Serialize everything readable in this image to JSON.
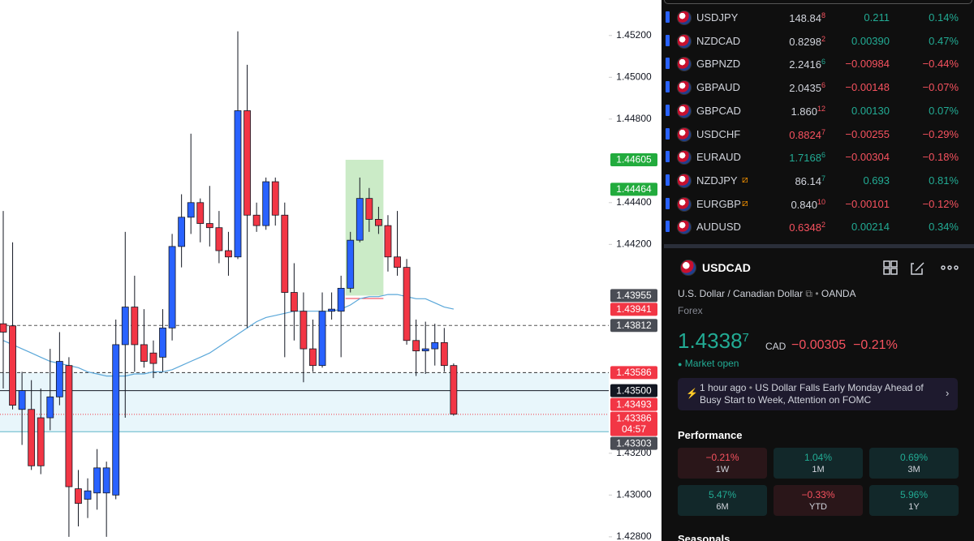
{
  "chart_data": {
    "type": "candlestick",
    "up_color": "#2962ff",
    "down_color": "#f23645",
    "candles": [
      [
        1.4382,
        1.4436,
        1.4351,
        1.4378
      ],
      [
        1.4381,
        1.4421,
        1.4341,
        1.4343
      ],
      [
        1.4341,
        1.4359,
        1.4324,
        1.435
      ],
      [
        1.4341,
        1.4355,
        1.4312,
        1.4314
      ],
      [
        1.4337,
        1.4351,
        1.431,
        1.4314
      ],
      [
        1.4337,
        1.437,
        1.4331,
        1.4347
      ],
      [
        1.4347,
        1.4378,
        1.4343,
        1.4364
      ],
      [
        1.4362,
        1.4366,
        1.428,
        1.4304
      ],
      [
        1.4303,
        1.4312,
        1.4285,
        1.4296
      ],
      [
        1.4298,
        1.4308,
        1.4289,
        1.4302
      ],
      [
        1.4301,
        1.4322,
        1.4293,
        1.4313
      ],
      [
        1.4301,
        1.4316,
        1.428,
        1.4313
      ],
      [
        1.43,
        1.4384,
        1.4298,
        1.4372
      ],
      [
        1.4372,
        1.4426,
        1.4337,
        1.439
      ],
      [
        1.439,
        1.4405,
        1.4359,
        1.4372
      ],
      [
        1.4372,
        1.4389,
        1.4361,
        1.4364
      ],
      [
        1.4368,
        1.4374,
        1.4356,
        1.4363
      ],
      [
        1.4366,
        1.4389,
        1.4359,
        1.438
      ],
      [
        1.438,
        1.4425,
        1.4374,
        1.4419
      ],
      [
        1.4419,
        1.4444,
        1.4409,
        1.4433
      ],
      [
        1.4433,
        1.4473,
        1.4425,
        1.444
      ],
      [
        1.444,
        1.4442,
        1.4421,
        1.443
      ],
      [
        1.443,
        1.4448,
        1.4419,
        1.4428
      ],
      [
        1.4428,
        1.4436,
        1.4411,
        1.4417
      ],
      [
        1.4417,
        1.4426,
        1.4405,
        1.4414
      ],
      [
        1.4414,
        1.4522,
        1.4413,
        1.4484
      ],
      [
        1.4484,
        1.4506,
        1.438,
        1.4434
      ],
      [
        1.4434,
        1.444,
        1.4426,
        1.4429
      ],
      [
        1.4429,
        1.4452,
        1.4427,
        1.445
      ],
      [
        1.445,
        1.4452,
        1.4429,
        1.4434
      ],
      [
        1.4434,
        1.444,
        1.4366,
        1.4397
      ],
      [
        1.4397,
        1.4411,
        1.4374,
        1.4388
      ],
      [
        1.4388,
        1.4397,
        1.4354,
        1.437
      ],
      [
        1.437,
        1.4384,
        1.4359,
        1.4362
      ],
      [
        1.4362,
        1.4397,
        1.4361,
        1.4388
      ],
      [
        1.4388,
        1.4397,
        1.4384,
        1.4389
      ],
      [
        1.4388,
        1.4405,
        1.4366,
        1.4399
      ],
      [
        1.4399,
        1.4426,
        1.4397,
        1.4422
      ],
      [
        1.4422,
        1.4452,
        1.4421,
        1.4442
      ],
      [
        1.4442,
        1.4447,
        1.4426,
        1.4432
      ],
      [
        1.4432,
        1.4438,
        1.4425,
        1.4429
      ],
      [
        1.4429,
        1.4434,
        1.4407,
        1.4414
      ],
      [
        1.4414,
        1.4436,
        1.4405,
        1.4409
      ],
      [
        1.4409,
        1.4413,
        1.4372,
        1.4374
      ],
      [
        1.4374,
        1.4384,
        1.4357,
        1.4369
      ],
      [
        1.4369,
        1.4383,
        1.4358,
        1.437
      ],
      [
        1.437,
        1.4382,
        1.4362,
        1.4373
      ],
      [
        1.4373,
        1.438,
        1.4359,
        1.4362
      ],
      [
        1.4362,
        1.4363,
        1.4338,
        1.43387
      ]
    ],
    "ma": {
      "color": "#5aa7d9",
      "values": [
        1.4374,
        1.4372,
        1.437,
        1.4368,
        1.4366,
        1.4364,
        1.4363,
        1.4362,
        1.4361,
        1.4359,
        1.4358,
        1.4357,
        1.4357,
        1.4357,
        1.4358,
        1.4358,
        1.4359,
        1.4359,
        1.436,
        1.4362,
        1.4364,
        1.4366,
        1.4368,
        1.4371,
        1.4374,
        1.4377,
        1.438,
        1.4383,
        1.4385,
        1.4386,
        1.4387,
        1.4388,
        1.4388,
        1.4388,
        1.4388,
        1.4388,
        1.4389,
        1.4391,
        1.4394,
        1.4395,
        1.4395,
        1.4396,
        1.4396,
        1.4395,
        1.4394,
        1.4394,
        1.4392,
        1.439,
        1.4389
      ]
    },
    "ylim": [
      1.4278,
      1.4537
    ],
    "yticks": [
      {
        "value": 1.452,
        "label": "1.45200"
      },
      {
        "value": 1.45,
        "label": "1.45000"
      },
      {
        "value": 1.448,
        "label": "1.44800"
      },
      {
        "value": 1.444,
        "label": "1.44400"
      },
      {
        "value": 1.442,
        "label": "1.44200"
      },
      {
        "value": 1.432,
        "label": "1.43200"
      },
      {
        "value": 1.43,
        "label": "1.43000"
      },
      {
        "value": 1.428,
        "label": "1.42800"
      }
    ],
    "price_tags": [
      {
        "value": 1.44605,
        "color": "#22ab3d"
      },
      {
        "value": 1.44464,
        "color": "#22ab3d"
      },
      {
        "value": 1.43955,
        "color": "#4a4d55"
      },
      {
        "value": 1.43941,
        "color": "#f23645"
      },
      {
        "value": 1.43812,
        "color": "#4a4d55",
        "line": "dashed",
        "line_color": "#555"
      },
      {
        "value": 1.43586,
        "color": "#f23645",
        "line": "dashed",
        "line_color": "#333"
      },
      {
        "value": 1.435,
        "label": "1.43500",
        "color": "#131722",
        "line": "solid",
        "line_color": "#131722"
      },
      {
        "value": 1.43493,
        "color": "#f23645"
      },
      {
        "value": 1.43386,
        "color": "#f23645",
        "countdown": "04:57",
        "line": "dotted",
        "line_color": "#f23645"
      },
      {
        "value": 1.43303,
        "color": "#4a4d55",
        "line": "solid",
        "line_color": "#5fb6c9"
      }
    ]
  },
  "watchlist": [
    {
      "symbol": "USDJPY",
      "price": "148.84",
      "price_sup": "8",
      "price_color": "#d1d4dc",
      "sup_color": "#f7525f",
      "change": "0.211",
      "percent": "0.14%",
      "color": "#22ab94"
    },
    {
      "symbol": "NZDCAD",
      "price": "0.8298",
      "price_sup": "2",
      "price_color": "#d1d4dc",
      "sup_color": "#f7525f",
      "change": "0.00390",
      "percent": "0.47%",
      "color": "#22ab94"
    },
    {
      "symbol": "GBPNZD",
      "price": "2.2416",
      "price_sup": "6",
      "price_color": "#d1d4dc",
      "sup_color": "#22ab94",
      "change": "−0.00984",
      "percent": "−0.44%",
      "color": "#f7525f"
    },
    {
      "symbol": "GBPAUD",
      "price": "2.0435",
      "price_sup": "6",
      "price_color": "#d1d4dc",
      "sup_color": "#f7525f",
      "change": "−0.00148",
      "percent": "−0.07%",
      "color": "#f7525f"
    },
    {
      "symbol": "GBPCAD",
      "price": "1.860",
      "price_sup": "12",
      "price_color": "#d1d4dc",
      "sup_color": "#f7525f",
      "change": "0.00130",
      "percent": "0.07%",
      "color": "#22ab94"
    },
    {
      "symbol": "USDCHF",
      "price": "0.8824",
      "price_sup": "7",
      "price_color": "#f7525f",
      "sup_color": "#f7525f",
      "change": "−0.00255",
      "percent": "−0.29%",
      "color": "#f7525f"
    },
    {
      "symbol": "EURAUD",
      "price": "1.7168",
      "price_sup": "6",
      "price_color": "#22ab94",
      "sup_color": "#22ab94",
      "change": "−0.00304",
      "percent": "−0.18%",
      "color": "#f7525f"
    },
    {
      "symbol": "NZDJPY",
      "price": "86.14",
      "price_sup": "7",
      "price_color": "#d1d4dc",
      "sup_color": "#22ab94",
      "change": "0.693",
      "percent": "0.81%",
      "color": "#22ab94",
      "alert": true
    },
    {
      "symbol": "EURGBP",
      "price": "0.840",
      "price_sup": "10",
      "price_color": "#d1d4dc",
      "sup_color": "#f7525f",
      "change": "−0.00101",
      "percent": "−0.12%",
      "color": "#f7525f",
      "alert": true
    },
    {
      "symbol": "AUDUSD",
      "price": "0.6348",
      "price_sup": "2",
      "price_color": "#f7525f",
      "sup_color": "#f7525f",
      "change": "0.00214",
      "percent": "0.34%",
      "color": "#22ab94"
    }
  ],
  "symbol": {
    "ticker": "USDCAD",
    "name": "U.S. Dollar / Canadian Dollar",
    "exchange": "OANDA",
    "market": "Forex",
    "price": "1.4338",
    "price_sup": "7",
    "currency": "CAD",
    "change": "−0.00305",
    "percent": "−0.21%",
    "status": "Market open",
    "news": {
      "time": "1 hour ago",
      "headline": "US Dollar Falls Early Monday Ahead of Busy Start to Week, Attention on FOMC"
    },
    "performance_title": "Performance",
    "performance": [
      {
        "value": "−0.21%",
        "period": "1W",
        "color": "#f7525f"
      },
      {
        "value": "1.04%",
        "period": "1M",
        "color": "#22ab94"
      },
      {
        "value": "0.69%",
        "period": "3M",
        "color": "#22ab94"
      },
      {
        "value": "5.47%",
        "period": "6M",
        "color": "#22ab94"
      },
      {
        "value": "−0.33%",
        "period": "YTD",
        "color": "#f7525f"
      },
      {
        "value": "5.96%",
        "period": "1Y",
        "color": "#22ab94"
      }
    ],
    "seasonals_title": "Seasonals"
  }
}
